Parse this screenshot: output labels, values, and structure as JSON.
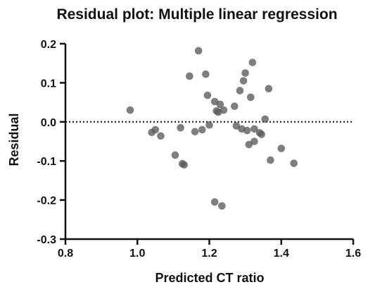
{
  "chart_data": {
    "type": "scatter",
    "title": "Residual plot: Multiple linear regression",
    "xlabel": "Predicted CT ratio",
    "ylabel": "Residual",
    "xlim": [
      0.8,
      1.6
    ],
    "ylim": [
      -0.3,
      0.2
    ],
    "xticks": [
      0.8,
      1.0,
      1.2,
      1.4,
      1.6
    ],
    "xtick_labels": [
      "0.8",
      "1.0",
      "1.2",
      "1.4",
      "1.6"
    ],
    "yticks": [
      -0.3,
      -0.2,
      -0.1,
      0.0,
      0.1,
      0.2
    ],
    "ytick_labels": [
      "-0.3",
      "-0.2",
      "-0.1",
      "0.0",
      "0.1",
      "0.2"
    ],
    "reference_line": {
      "y": 0.0,
      "style": "dotted"
    },
    "grid": false,
    "point_color": "#5a5a5a",
    "points": [
      {
        "x": 0.98,
        "y": 0.03
      },
      {
        "x": 1.04,
        "y": -0.027
      },
      {
        "x": 1.05,
        "y": -0.02
      },
      {
        "x": 1.065,
        "y": -0.036
      },
      {
        "x": 1.105,
        "y": -0.085
      },
      {
        "x": 1.12,
        "y": -0.015
      },
      {
        "x": 1.125,
        "y": -0.107
      },
      {
        "x": 1.13,
        "y": -0.11
      },
      {
        "x": 1.145,
        "y": 0.117
      },
      {
        "x": 1.16,
        "y": -0.025
      },
      {
        "x": 1.17,
        "y": 0.182
      },
      {
        "x": 1.18,
        "y": -0.02
      },
      {
        "x": 1.19,
        "y": 0.122
      },
      {
        "x": 1.195,
        "y": 0.068
      },
      {
        "x": 1.2,
        "y": -0.008
      },
      {
        "x": 1.215,
        "y": 0.052
      },
      {
        "x": 1.22,
        "y": 0.028
      },
      {
        "x": 1.225,
        "y": 0.025
      },
      {
        "x": 1.215,
        "y": -0.205
      },
      {
        "x": 1.23,
        "y": 0.045
      },
      {
        "x": 1.235,
        "y": -0.215
      },
      {
        "x": 1.24,
        "y": 0.03
      },
      {
        "x": 1.27,
        "y": 0.04
      },
      {
        "x": 1.275,
        "y": -0.01
      },
      {
        "x": 1.285,
        "y": 0.08
      },
      {
        "x": 1.29,
        "y": -0.018
      },
      {
        "x": 1.295,
        "y": 0.105
      },
      {
        "x": 1.3,
        "y": 0.125
      },
      {
        "x": 1.305,
        "y": -0.022
      },
      {
        "x": 1.31,
        "y": -0.058
      },
      {
        "x": 1.315,
        "y": 0.063
      },
      {
        "x": 1.32,
        "y": 0.152
      },
      {
        "x": 1.325,
        "y": -0.05
      },
      {
        "x": 1.325,
        "y": -0.018
      },
      {
        "x": 1.34,
        "y": -0.028
      },
      {
        "x": 1.345,
        "y": -0.032
      },
      {
        "x": 1.355,
        "y": 0.007
      },
      {
        "x": 1.365,
        "y": 0.085
      },
      {
        "x": 1.37,
        "y": -0.098
      },
      {
        "x": 1.4,
        "y": -0.068
      },
      {
        "x": 1.435,
        "y": -0.106
      }
    ]
  }
}
